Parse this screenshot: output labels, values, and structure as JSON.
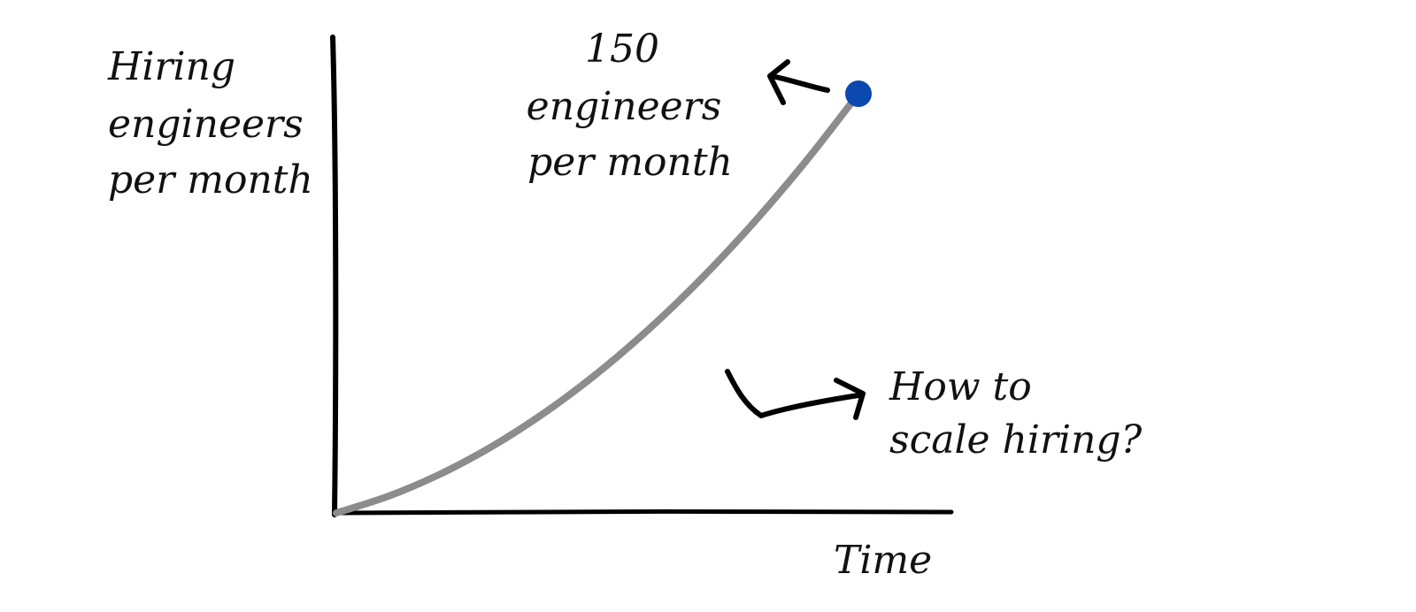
{
  "chart_data": {
    "type": "line",
    "title": "",
    "ylabel": [
      "Hiring",
      "engineers",
      "per month"
    ],
    "xlabel": "Time",
    "annotations": {
      "peak": [
        "150",
        "engineers",
        "per month"
      ],
      "question": [
        "How to",
        "scale hiring?"
      ]
    },
    "peak_value": 150,
    "ylim": [
      0,
      165
    ],
    "xlim": [
      0,
      100
    ],
    "grid": false,
    "legend": "none",
    "series": [
      {
        "x": [
          0,
          10,
          20,
          30,
          40,
          50,
          60,
          70,
          80,
          90,
          100
        ],
        "values": [
          0,
          6,
          14,
          24,
          36,
          50,
          66,
          84,
          104,
          126,
          150
        ],
        "color": "#8c8c8c"
      }
    ],
    "colors": {
      "axis": "#000000",
      "curve": "#8c8c8c",
      "endpoint": "#0b49b0",
      "text": "#111111"
    }
  }
}
